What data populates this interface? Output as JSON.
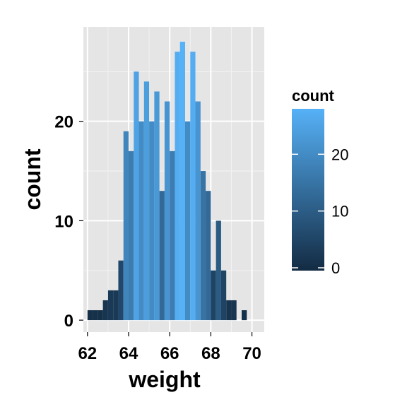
{
  "chart_data": {
    "type": "bar",
    "title": "",
    "xlabel": "weight",
    "ylabel": "count",
    "xlim": [
      61.8,
      70.6
    ],
    "ylim": [
      -1.2,
      29.5
    ],
    "xticks": [
      62,
      64,
      66,
      68,
      70
    ],
    "yticks": [
      0,
      10,
      20
    ],
    "grid": true,
    "bin_width": 0.25,
    "bins_start": [
      62,
      62.25,
      62.5,
      62.75,
      63,
      63.25,
      63.5,
      63.75,
      64,
      64.25,
      64.5,
      64.75,
      65,
      65.25,
      65.5,
      65.75,
      66,
      66.25,
      66.5,
      66.75,
      67,
      67.25,
      67.5,
      67.75,
      68,
      68.25,
      68.5,
      68.75,
      69,
      69.25,
      69.5,
      69.75
    ],
    "values": [
      1,
      1,
      1,
      2,
      3,
      3,
      6,
      19,
      17,
      25,
      20,
      24,
      20,
      23,
      13,
      22,
      17,
      27,
      28,
      20,
      27,
      22,
      15,
      13,
      5,
      10,
      5,
      2,
      2,
      0,
      1,
      0
    ],
    "legend": {
      "title": "count",
      "position": "right",
      "ticks": [
        0,
        10,
        20
      ],
      "range": [
        0,
        28
      ],
      "low_color": "#132B43",
      "high_color": "#56B1F7"
    }
  }
}
